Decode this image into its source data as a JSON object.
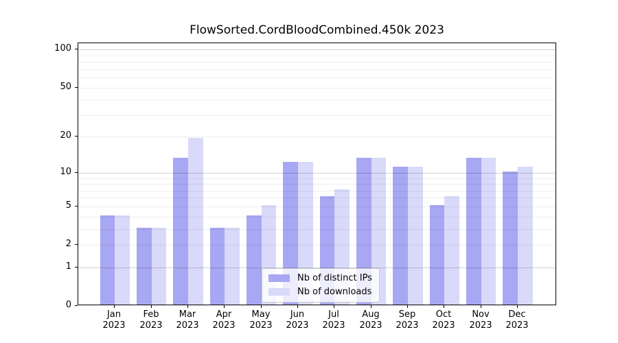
{
  "figure": {
    "title": "FlowSorted.CordBloodCombined.450k 2023"
  },
  "chart_data": {
    "type": "bar",
    "title": "FlowSorted.CordBloodCombined.450k 2023",
    "categories": [
      "Jan 2023",
      "Feb 2023",
      "Mar 2023",
      "Apr 2023",
      "May 2023",
      "Jun 2023",
      "Jul 2023",
      "Aug 2023",
      "Sep 2023",
      "Oct 2023",
      "Nov 2023",
      "Dec 2023"
    ],
    "x_tick_line1": [
      "Jan",
      "Feb",
      "Mar",
      "Apr",
      "May",
      "Jun",
      "Jul",
      "Aug",
      "Sep",
      "Oct",
      "Nov",
      "Dec"
    ],
    "x_tick_line2": "2023",
    "series": [
      {
        "name": "Nb of distinct IPs",
        "color": "#a7a7f3",
        "values": [
          4,
          3,
          13,
          3,
          4,
          12,
          6,
          13,
          11,
          5,
          13,
          10
        ]
      },
      {
        "name": "Nb of downloads",
        "color": "#d9d9f9",
        "values": [
          4,
          3,
          19,
          3,
          5,
          12,
          7,
          13,
          11,
          6,
          13,
          11
        ]
      }
    ],
    "xlabel": "",
    "ylabel": "",
    "yscale": "log1p",
    "ylim": [
      0,
      111
    ],
    "yticks": [
      0,
      1,
      2,
      5,
      10,
      20,
      50,
      100
    ],
    "grid": {
      "on": true,
      "major_values": [
        1,
        10,
        100
      ],
      "minor_values": [
        2,
        3,
        4,
        5,
        6,
        7,
        8,
        9,
        20,
        30,
        40,
        50,
        60,
        70,
        80,
        90
      ]
    },
    "legend": {
      "position": "lower center"
    }
  }
}
